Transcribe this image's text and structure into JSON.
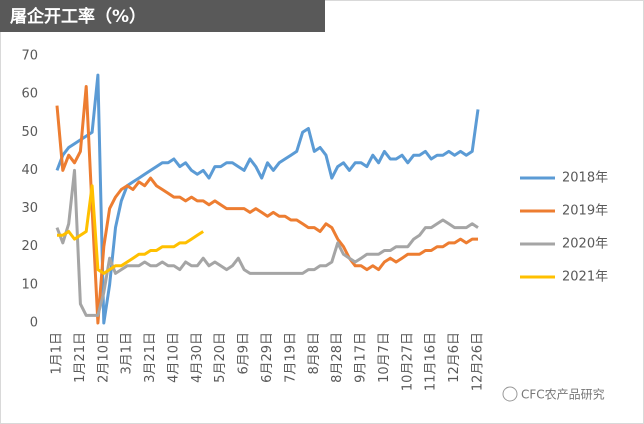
{
  "chart_data": {
    "type": "line",
    "title": "屠企开工率（%）",
    "watermark": "CFC农产品研究",
    "categories": [
      "1月1日",
      null,
      null,
      null,
      "1月21日",
      null,
      null,
      null,
      "2月10日",
      null,
      null,
      null,
      "3月1日",
      null,
      null,
      null,
      "3月21日",
      null,
      null,
      null,
      "4月10日",
      null,
      null,
      null,
      "4月30日",
      null,
      null,
      null,
      "5月20日",
      null,
      null,
      null,
      "6月9日",
      null,
      null,
      null,
      "6月29日",
      null,
      null,
      null,
      "7月19日",
      null,
      null,
      null,
      "8月8日",
      null,
      null,
      null,
      "8月28日",
      null,
      null,
      null,
      "9月17日",
      null,
      null,
      null,
      "10月7日",
      null,
      null,
      null,
      "10月27日",
      null,
      null,
      null,
      "11月16日",
      null,
      null,
      null,
      "12月6日",
      null,
      null,
      null,
      "12月26日"
    ],
    "series": [
      {
        "name": "2018年",
        "color": "#5b9bd5",
        "values": [
          40,
          44,
          46,
          47,
          48,
          49,
          50,
          65,
          0,
          10,
          25,
          32,
          36,
          37,
          38,
          39,
          40,
          41,
          42,
          42,
          43,
          41,
          42,
          40,
          39,
          40,
          38,
          41,
          41,
          42,
          42,
          41,
          40,
          43,
          41,
          38,
          42,
          40,
          42,
          43,
          44,
          45,
          50,
          51,
          45,
          46,
          44,
          38,
          41,
          42,
          40,
          42,
          42,
          41,
          44,
          42,
          45,
          43,
          43,
          44,
          42,
          44,
          44,
          45,
          43,
          44,
          44,
          45,
          44,
          45,
          44,
          45,
          56
        ]
      },
      {
        "name": "2019年",
        "color": "#ed7d31",
        "values": [
          57,
          40,
          44,
          42,
          45,
          62,
          30,
          0,
          20,
          30,
          33,
          35,
          36,
          35,
          37,
          36,
          38,
          36,
          35,
          34,
          33,
          33,
          32,
          33,
          32,
          32,
          31,
          32,
          31,
          30,
          30,
          30,
          30,
          29,
          30,
          29,
          28,
          29,
          28,
          28,
          27,
          27,
          26,
          25,
          25,
          24,
          26,
          25,
          22,
          20,
          17,
          15,
          15,
          14,
          15,
          14,
          16,
          17,
          16,
          17,
          18,
          18,
          18,
          19,
          19,
          20,
          20,
          21,
          21,
          22,
          21,
          22,
          22
        ]
      },
      {
        "name": "2020年",
        "color": "#a5a5a5",
        "values": [
          25,
          21,
          26,
          40,
          5,
          2,
          2,
          2,
          8,
          17,
          13,
          14,
          15,
          15,
          15,
          16,
          15,
          15,
          16,
          15,
          15,
          14,
          16,
          15,
          15,
          17,
          15,
          16,
          15,
          14,
          15,
          17,
          14,
          13,
          13,
          13,
          13,
          13,
          13,
          13,
          13,
          13,
          13,
          14,
          14,
          15,
          15,
          16,
          21,
          18,
          17,
          16,
          17,
          18,
          18,
          18,
          19,
          19,
          20,
          20,
          20,
          22,
          23,
          25,
          25,
          26,
          27,
          26,
          25,
          25,
          25,
          26,
          25
        ]
      },
      {
        "name": "2021年",
        "color": "#ffc000",
        "values": [
          23,
          23,
          24,
          22,
          23,
          24,
          36,
          14,
          13,
          14,
          15,
          15,
          16,
          17,
          18,
          18,
          19,
          19,
          20,
          20,
          20,
          21,
          21,
          22,
          23,
          24,
          null,
          null,
          null,
          null,
          null,
          null,
          null,
          null,
          null,
          null,
          null,
          null,
          null,
          null,
          null,
          null,
          null,
          null,
          null,
          null,
          null,
          null,
          null,
          null,
          null,
          null,
          null,
          null,
          null,
          null,
          null,
          null,
          null,
          null,
          null,
          null,
          null,
          null,
          null,
          null,
          null,
          null,
          null,
          null,
          null,
          null,
          null
        ]
      }
    ],
    "ylim": [
      0,
      70
    ],
    "yticks": [
      0,
      10,
      20,
      30,
      40,
      50,
      60,
      70
    ],
    "grid": false,
    "legend": "right"
  }
}
